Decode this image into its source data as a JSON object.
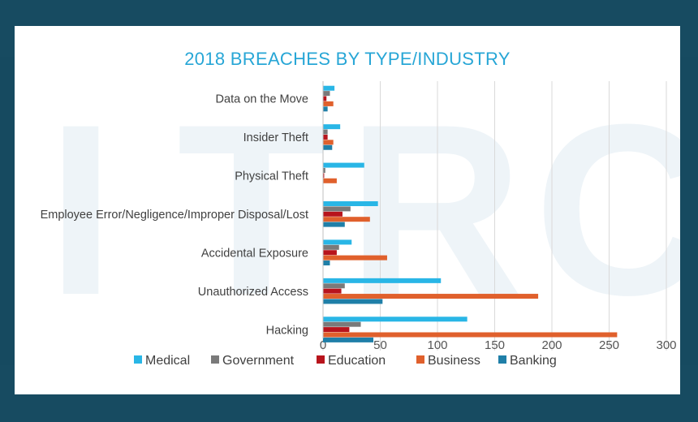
{
  "chart_data": {
    "type": "bar",
    "orientation": "horizontal",
    "title": "2018 BREACHES BY TYPE/INDUSTRY",
    "categories": [
      "Data on the Move",
      "Insider Theft",
      "Physical Theft",
      "Employee Error/Negligence/Improper Disposal/Lost",
      "Accidental Exposure",
      "Unauthorized Access",
      "Hacking"
    ],
    "series": [
      {
        "name": "Medical",
        "color": "#29b6e6",
        "values": [
          10,
          15,
          36,
          48,
          25,
          103,
          126
        ]
      },
      {
        "name": "Government",
        "color": "#7a7a7a",
        "values": [
          6,
          4,
          2,
          24,
          14,
          19,
          33
        ]
      },
      {
        "name": "Education",
        "color": "#b8141c",
        "values": [
          3,
          4,
          1,
          17,
          12,
          16,
          23
        ]
      },
      {
        "name": "Business",
        "color": "#e0602c",
        "values": [
          9,
          9,
          12,
          41,
          56,
          188,
          257
        ]
      },
      {
        "name": "Banking",
        "color": "#1f7fa8",
        "values": [
          4,
          8,
          0,
          19,
          6,
          52,
          44
        ]
      }
    ],
    "xlim": [
      0,
      300
    ],
    "xticks": [
      "0",
      "50",
      "100",
      "150",
      "200",
      "250",
      "300"
    ],
    "grid": true,
    "legend_position": "bottom"
  },
  "background": {
    "watermark": "ITRC"
  }
}
